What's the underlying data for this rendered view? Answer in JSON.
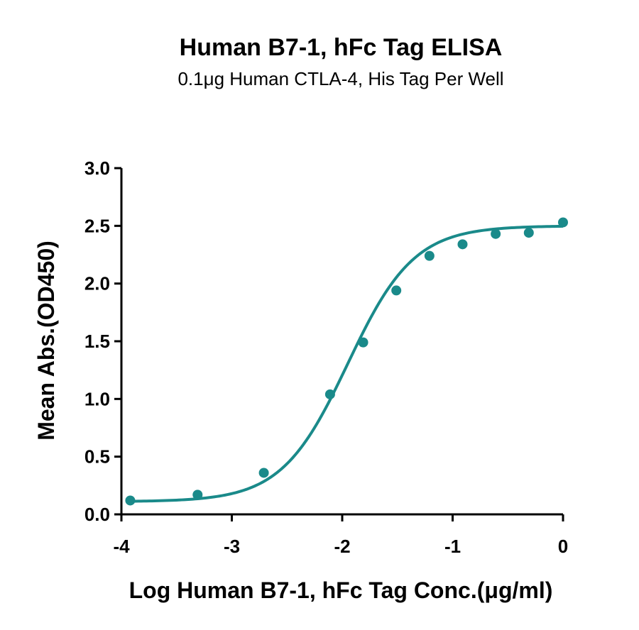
{
  "chart_data": {
    "type": "scatter",
    "title": "Human B7-1, hFc Tag ELISA",
    "subtitle": "0.1μg Human CTLA-4, His Tag Per Well",
    "xlabel": "Log Human B7-1, hFc Tag Conc.(μg/ml)",
    "ylabel": "Mean Abs.(OD450)",
    "xlim": [
      -4,
      0
    ],
    "ylim": [
      0,
      3
    ],
    "xticks": [
      -4,
      -3,
      -2,
      -1,
      0
    ],
    "xtick_labels": [
      "-4",
      "-3",
      "-2",
      "-1",
      "0"
    ],
    "yticks": [
      0,
      0.5,
      1,
      1.5,
      2,
      2.5,
      3
    ],
    "ytick_labels": [
      "0.0",
      "0.5",
      "1.0",
      "1.5",
      "2.0",
      "2.5",
      "3.0"
    ],
    "grid": false,
    "color": "#1a8a8a",
    "fit": "four-parameter logistic",
    "series": [
      {
        "x": [
          -3.92,
          -3.31,
          -2.71,
          -2.11,
          -1.81,
          -1.51,
          -1.21,
          -0.91,
          -0.61,
          -0.31,
          0.0
        ],
        "y": [
          0.12,
          0.17,
          0.36,
          1.04,
          1.49,
          1.94,
          2.24,
          2.34,
          2.43,
          2.44,
          2.53
        ]
      }
    ]
  }
}
